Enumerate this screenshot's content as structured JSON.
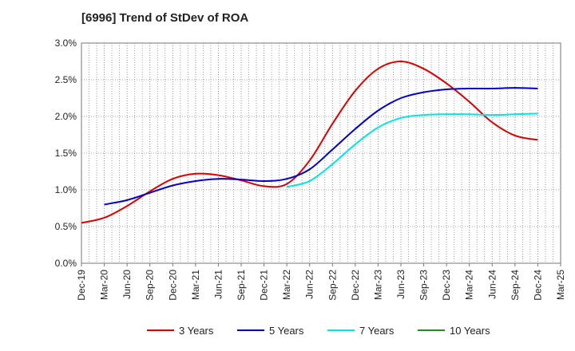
{
  "chart_data": {
    "type": "line",
    "title": "[6996]  Trend of StDev of ROA",
    "xlabel": "",
    "ylabel": "",
    "x": [
      "Dec-19",
      "Mar-20",
      "Jun-20",
      "Sep-20",
      "Dec-20",
      "Mar-21",
      "Jun-21",
      "Sep-21",
      "Dec-21",
      "Mar-22",
      "Jun-22",
      "Sep-22",
      "Dec-22",
      "Mar-23",
      "Jun-23",
      "Sep-23",
      "Dec-23",
      "Mar-24",
      "Jun-24",
      "Sep-24",
      "Dec-24",
      "Mar-25"
    ],
    "y_ticks": [
      "0.0%",
      "0.5%",
      "1.0%",
      "1.5%",
      "2.0%",
      "2.5%",
      "3.0%"
    ],
    "ylim": [
      0,
      3.0
    ],
    "y_unit": "%",
    "grid": "dotted",
    "legend_position": "bottom",
    "series": [
      {
        "name": "3 Years",
        "color": "#dd0000",
        "values": [
          0.55,
          0.62,
          0.78,
          0.98,
          1.15,
          1.22,
          1.2,
          1.13,
          1.05,
          1.08,
          1.4,
          1.9,
          2.35,
          2.65,
          2.75,
          2.65,
          2.45,
          2.2,
          1.92,
          1.74,
          1.68,
          null
        ]
      },
      {
        "name": "5 Years",
        "color": "#0000cc",
        "values": [
          null,
          0.8,
          0.86,
          0.96,
          1.06,
          1.12,
          1.15,
          1.14,
          1.12,
          1.15,
          1.28,
          1.55,
          1.83,
          2.08,
          2.25,
          2.33,
          2.37,
          2.38,
          2.38,
          2.39,
          2.38,
          null
        ]
      },
      {
        "name": "7 Years",
        "color": "#00e5e5",
        "values": [
          null,
          null,
          null,
          null,
          null,
          null,
          null,
          null,
          null,
          1.04,
          1.12,
          1.35,
          1.62,
          1.85,
          1.98,
          2.02,
          2.03,
          2.03,
          2.02,
          2.03,
          2.04,
          null
        ]
      },
      {
        "name": "10 Years",
        "color": "#228b22",
        "values": [
          null,
          null,
          null,
          null,
          null,
          null,
          null,
          null,
          null,
          null,
          null,
          null,
          null,
          null,
          null,
          null,
          null,
          null,
          null,
          null,
          null,
          null
        ]
      }
    ]
  }
}
